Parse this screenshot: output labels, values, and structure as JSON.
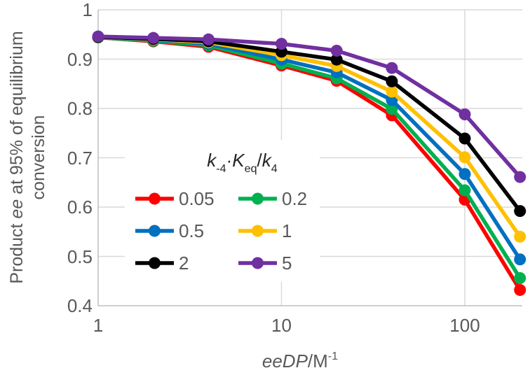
{
  "chart_data": {
    "type": "line",
    "title": "",
    "x": [
      1,
      2,
      4,
      10,
      20,
      40,
      100,
      200
    ],
    "series": [
      {
        "name": "0.05",
        "color": "#FF0000",
        "values": [
          0.944,
          0.936,
          0.925,
          0.887,
          0.856,
          0.786,
          0.615,
          0.432
        ]
      },
      {
        "name": "0.2",
        "color": "#00B050",
        "values": [
          0.944,
          0.937,
          0.928,
          0.891,
          0.861,
          0.799,
          0.634,
          0.456
        ]
      },
      {
        "name": "0.5",
        "color": "#0070C0",
        "values": [
          0.945,
          0.939,
          0.931,
          0.899,
          0.873,
          0.817,
          0.667,
          0.494
        ]
      },
      {
        "name": "1",
        "color": "#FFC000",
        "values": [
          0.945,
          0.94,
          0.934,
          0.908,
          0.886,
          0.834,
          0.701,
          0.54
        ]
      },
      {
        "name": "2",
        "color": "#000000",
        "values": [
          0.945,
          0.941,
          0.936,
          0.915,
          0.899,
          0.855,
          0.739,
          0.592
        ]
      },
      {
        "name": "5",
        "color": "#7030A0",
        "values": [
          0.946,
          0.943,
          0.94,
          0.931,
          0.917,
          0.882,
          0.788,
          0.661
        ]
      }
    ],
    "x_axis": {
      "scale": "log",
      "min": 1,
      "max": 206,
      "ticks": [
        {
          "label": "1",
          "value": 1
        },
        {
          "label": "10",
          "value": 10
        },
        {
          "label": "100",
          "value": 100
        }
      ],
      "label_italic": "eeDP",
      "label_unit": "/M",
      "label_sup": "-1"
    },
    "y_axis": {
      "min": 0.4,
      "max": 1.0,
      "ticks": [
        {
          "label": "1",
          "value": 1.0
        },
        {
          "label": "0.9",
          "value": 0.9
        },
        {
          "label": "0.8",
          "value": 0.8
        },
        {
          "label": "0.7",
          "value": 0.7
        },
        {
          "label": "0.6",
          "value": 0.6
        },
        {
          "label": "0.5",
          "value": 0.5
        },
        {
          "label": "0.4",
          "value": 0.4
        }
      ],
      "label_pre": "Product ",
      "label_ee": "ee",
      "label_post": " at 95% of equilibrium",
      "label_line2": "conversion"
    },
    "legend": {
      "position": "inside-center-left",
      "title_parts": [
        {
          "t": "k",
          "i": true
        },
        {
          "t": "-4",
          "s": true
        },
        {
          "t": "·"
        },
        {
          "t": "K",
          "i": true
        },
        {
          "t": "eq",
          "s": true
        },
        {
          "t": "/"
        },
        {
          "t": "k",
          "i": true
        },
        {
          "t": "4",
          "s": true
        }
      ]
    },
    "grid": true,
    "colors": {
      "text": "#595959",
      "gridline": "#D9D9D9",
      "axis": "#BFBFBF",
      "background": "#FFFFFF"
    }
  }
}
